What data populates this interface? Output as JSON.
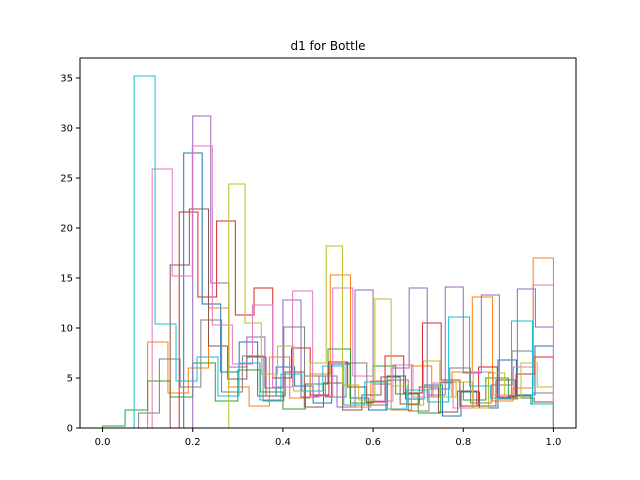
{
  "chart_data": {
    "type": "histogram-step",
    "title": "d1 for Bottle",
    "xlabel": "",
    "ylabel": "",
    "xlim": [
      -0.05,
      1.05
    ],
    "ylim": [
      0,
      37
    ],
    "xticks": [
      0.0,
      0.2,
      0.4,
      0.6,
      0.8,
      1.0
    ],
    "xtick_labels": [
      "0.0",
      "0.2",
      "0.4",
      "0.6",
      "0.8",
      "1.0"
    ],
    "yticks": [
      0,
      5,
      10,
      15,
      20,
      25,
      30,
      35
    ],
    "ytick_labels": [
      "0",
      "5",
      "10",
      "15",
      "20",
      "25",
      "30",
      "35"
    ],
    "grid": false,
    "legend": false,
    "bins": 20,
    "series": [
      {
        "color": "#1f77b4",
        "range": [
          0.18,
          1.0
        ],
        "values": [
          27.5,
          12.4,
          5.6,
          8.6,
          3.2,
          6.1,
          4.2,
          2.5,
          6.4,
          3.0,
          1.8,
          5.2,
          2.9,
          4.3,
          1.2,
          3.6,
          2.0,
          6.8,
          3.3,
          8.2
        ]
      },
      {
        "color": "#ff7f0e",
        "range": [
          0.1,
          1.0
        ],
        "values": [
          8.6,
          3.5,
          6.0,
          12.0,
          4.1,
          2.2,
          7.1,
          3.0,
          5.4,
          15.3,
          2.1,
          4.7,
          1.8,
          6.2,
          3.1,
          5.6,
          13.1,
          2.7,
          4.0,
          17.0
        ]
      },
      {
        "color": "#2ca02c",
        "range": [
          0.0,
          1.0
        ],
        "values": [
          0.2,
          1.8,
          4.7,
          3.1,
          6.5,
          2.7,
          5.8,
          3.6,
          1.9,
          4.4,
          7.9,
          2.5,
          6.2,
          3.4,
          1.5,
          4.6,
          2.8,
          5.0,
          3.2,
          2.4
        ]
      },
      {
        "color": "#d62728",
        "range": [
          0.17,
          1.0
        ],
        "values": [
          21.6,
          13.1,
          20.7,
          11.3,
          14.0,
          5.0,
          8.0,
          3.3,
          6.6,
          4.1,
          2.6,
          7.2,
          3.5,
          10.5,
          4.8,
          2.2,
          6.1,
          3.1,
          5.4,
          7.1
        ]
      },
      {
        "color": "#9467bd",
        "range": [
          0.2,
          1.0
        ],
        "values": [
          31.2,
          14.5,
          6.1,
          9.1,
          4.0,
          12.8,
          3.1,
          5.2,
          2.1,
          13.8,
          4.4,
          6.0,
          14.0,
          3.3,
          14.1,
          5.5,
          13.3,
          2.9,
          13.9,
          10.1
        ]
      },
      {
        "color": "#8c564b",
        "range": [
          0.15,
          1.0
        ],
        "values": [
          16.3,
          21.9,
          8.2,
          4.9,
          7.1,
          3.2,
          5.6,
          2.1,
          4.5,
          1.8,
          3.3,
          5.1,
          2.4,
          4.1,
          1.6,
          3.7,
          2.2,
          4.8,
          3.0,
          2.6
        ]
      },
      {
        "color": "#e377c2",
        "range": [
          0.11,
          1.0
        ],
        "values": [
          25.9,
          15.2,
          28.2,
          10.3,
          6.4,
          12.3,
          4.1,
          13.7,
          3.2,
          14.0,
          5.2,
          2.7,
          6.3,
          3.1,
          4.5,
          2.0,
          5.6,
          3.3,
          6.1,
          14.3
        ]
      },
      {
        "color": "#7f7f7f",
        "range": [
          0.08,
          1.0
        ],
        "values": [
          1.5,
          6.9,
          4.1,
          10.8,
          3.6,
          7.2,
          2.7,
          10.1,
          5.2,
          3.1,
          6.5,
          2.3,
          4.8,
          1.7,
          3.9,
          6.0,
          2.5,
          4.3,
          7.7,
          3.5
        ]
      },
      {
        "color": "#bcbd22",
        "range": [
          0.28,
          1.0
        ],
        "values": [
          24.4,
          10.5,
          5.4,
          8.2,
          3.7,
          6.5,
          18.2,
          4.3,
          2.8,
          12.9,
          4.2,
          2.3,
          6.7,
          3.1,
          4.6,
          2.0,
          5.5,
          3.0,
          6.5,
          4.1
        ]
      },
      {
        "color": "#17becf",
        "range": [
          0.07,
          1.0
        ],
        "values": [
          35.2,
          10.4,
          4.7,
          7.1,
          3.2,
          6.5,
          2.8,
          5.4,
          3.7,
          6.2,
          2.3,
          4.6,
          1.9,
          3.8,
          2.6,
          11.1,
          4.2,
          3.0,
          10.7,
          2.4
        ]
      }
    ]
  }
}
